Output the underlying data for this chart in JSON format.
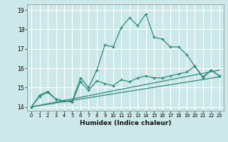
{
  "xlabel": "Humidex (Indice chaleur)",
  "ylabel": "",
  "background_color": "#cce8e8",
  "grid_color": "#ffffff",
  "line_color": "#2e8b7a",
  "xlim": [
    -0.5,
    23.5
  ],
  "ylim": [
    13.8,
    19.3
  ],
  "yticks": [
    14,
    15,
    16,
    17,
    18,
    19
  ],
  "xticks": [
    0,
    1,
    2,
    3,
    4,
    5,
    6,
    7,
    8,
    9,
    10,
    11,
    12,
    13,
    14,
    15,
    16,
    17,
    18,
    19,
    20,
    21,
    22,
    23
  ],
  "series1_x": [
    0,
    1,
    2,
    3,
    4,
    5,
    6,
    7,
    8,
    9,
    10,
    11,
    12,
    13,
    14,
    15,
    16,
    17,
    18,
    19,
    20,
    21,
    22,
    23
  ],
  "series1_y": [
    14.0,
    14.6,
    14.8,
    14.4,
    14.3,
    14.3,
    15.5,
    15.0,
    15.9,
    17.2,
    17.1,
    18.1,
    18.6,
    18.2,
    18.8,
    17.6,
    17.5,
    17.1,
    17.1,
    16.7,
    16.1,
    15.5,
    15.9,
    15.6
  ],
  "series2_x": [
    0,
    1,
    2,
    3,
    4,
    5,
    6,
    7,
    8,
    9,
    10,
    11,
    12,
    13,
    14,
    15,
    16,
    17,
    18,
    19,
    20,
    21,
    22,
    23
  ],
  "series2_y": [
    14.0,
    14.55,
    14.75,
    14.4,
    14.3,
    14.25,
    15.3,
    14.85,
    15.35,
    15.2,
    15.1,
    15.4,
    15.3,
    15.5,
    15.6,
    15.5,
    15.5,
    15.6,
    15.7,
    15.8,
    16.1,
    15.55,
    15.9,
    15.6
  ],
  "series3_x": [
    0,
    23
  ],
  "series3_y": [
    14.0,
    15.55
  ],
  "series4_x": [
    0,
    23
  ],
  "series4_y": [
    14.0,
    15.9
  ]
}
